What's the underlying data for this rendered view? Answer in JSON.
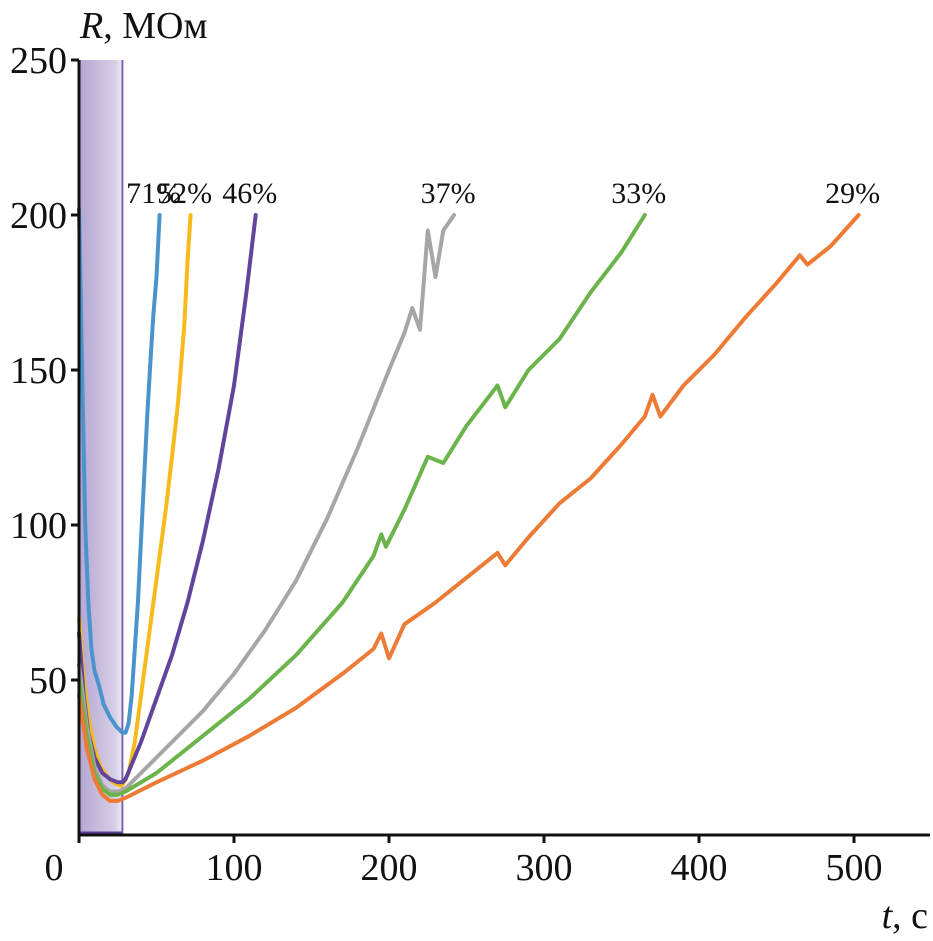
{
  "chart_data": {
    "type": "line",
    "title": "",
    "xlabel": {
      "symbol": "t",
      "unit": ", с"
    },
    "ylabel": {
      "symbol": "R",
      "unit": ", МОм"
    },
    "xlim": [
      0,
      550
    ],
    "ylim": [
      0,
      250
    ],
    "x_ticks": [
      0,
      100,
      200,
      300,
      400,
      500
    ],
    "y_ticks": [
      50,
      100,
      150,
      200,
      250
    ],
    "grid": false,
    "shaded_region": {
      "x_start": 0,
      "x_end": 28,
      "color": "#a796c9"
    },
    "series": [
      {
        "name": "71%",
        "color": "#4a93cc",
        "points": [
          [
            0,
            202
          ],
          [
            2,
            150
          ],
          [
            4,
            100
          ],
          [
            6,
            75
          ],
          [
            8,
            60
          ],
          [
            10,
            53
          ],
          [
            13,
            48
          ],
          [
            16,
            42
          ],
          [
            20,
            38
          ],
          [
            24,
            35
          ],
          [
            28,
            33
          ],
          [
            30,
            33
          ],
          [
            32,
            36
          ],
          [
            34,
            45
          ],
          [
            36,
            60
          ],
          [
            38,
            75
          ],
          [
            40,
            95
          ],
          [
            42,
            115
          ],
          [
            44,
            135
          ],
          [
            46,
            152
          ],
          [
            48,
            168
          ],
          [
            50,
            180
          ],
          [
            52,
            200
          ]
        ]
      },
      {
        "name": "52%",
        "color": "#f6bb1a",
        "points": [
          [
            0,
            70
          ],
          [
            3,
            50
          ],
          [
            6,
            38
          ],
          [
            10,
            28
          ],
          [
            14,
            22
          ],
          [
            18,
            19
          ],
          [
            22,
            17
          ],
          [
            26,
            16
          ],
          [
            28,
            16
          ],
          [
            32,
            20
          ],
          [
            36,
            30
          ],
          [
            40,
            45
          ],
          [
            44,
            60
          ],
          [
            48,
            75
          ],
          [
            52,
            90
          ],
          [
            56,
            105
          ],
          [
            60,
            122
          ],
          [
            64,
            140
          ],
          [
            68,
            165
          ],
          [
            70,
            185
          ],
          [
            72,
            200
          ]
        ]
      },
      {
        "name": "46%",
        "color": "#61449c",
        "points": [
          [
            0,
            65
          ],
          [
            3,
            45
          ],
          [
            6,
            33
          ],
          [
            10,
            25
          ],
          [
            15,
            20
          ],
          [
            20,
            18
          ],
          [
            25,
            17
          ],
          [
            28,
            17
          ],
          [
            30,
            18
          ],
          [
            40,
            30
          ],
          [
            50,
            44
          ],
          [
            60,
            58
          ],
          [
            70,
            75
          ],
          [
            80,
            95
          ],
          [
            90,
            118
          ],
          [
            100,
            145
          ],
          [
            108,
            175
          ],
          [
            114,
            200
          ]
        ]
      },
      {
        "name": "37%",
        "color": "#a6a6a6",
        "points": [
          [
            0,
            55
          ],
          [
            5,
            35
          ],
          [
            10,
            22
          ],
          [
            15,
            16
          ],
          [
            20,
            14
          ],
          [
            25,
            14
          ],
          [
            30,
            15
          ],
          [
            40,
            20
          ],
          [
            60,
            30
          ],
          [
            80,
            40
          ],
          [
            100,
            52
          ],
          [
            120,
            66
          ],
          [
            140,
            82
          ],
          [
            160,
            102
          ],
          [
            180,
            125
          ],
          [
            200,
            150
          ],
          [
            210,
            162
          ],
          [
            215,
            170
          ],
          [
            220,
            163
          ],
          [
            225,
            195
          ],
          [
            230,
            180
          ],
          [
            235,
            195
          ],
          [
            242,
            200
          ]
        ]
      },
      {
        "name": "33%",
        "color": "#6bb34b",
        "points": [
          [
            0,
            50
          ],
          [
            5,
            32
          ],
          [
            10,
            20
          ],
          [
            15,
            15
          ],
          [
            20,
            13
          ],
          [
            25,
            13
          ],
          [
            30,
            14
          ],
          [
            50,
            20
          ],
          [
            80,
            32
          ],
          [
            110,
            44
          ],
          [
            140,
            58
          ],
          [
            170,
            75
          ],
          [
            190,
            90
          ],
          [
            195,
            97
          ],
          [
            198,
            93
          ],
          [
            210,
            105
          ],
          [
            225,
            122
          ],
          [
            235,
            120
          ],
          [
            250,
            132
          ],
          [
            270,
            145
          ],
          [
            275,
            138
          ],
          [
            290,
            150
          ],
          [
            310,
            160
          ],
          [
            330,
            175
          ],
          [
            350,
            188
          ],
          [
            365,
            200
          ]
        ]
      },
      {
        "name": "29%",
        "color": "#ee7b35",
        "points": [
          [
            0,
            45
          ],
          [
            5,
            28
          ],
          [
            10,
            18
          ],
          [
            15,
            13
          ],
          [
            20,
            11
          ],
          [
            25,
            11
          ],
          [
            30,
            12
          ],
          [
            50,
            17
          ],
          [
            80,
            24
          ],
          [
            110,
            32
          ],
          [
            140,
            41
          ],
          [
            170,
            52
          ],
          [
            190,
            60
          ],
          [
            195,
            65
          ],
          [
            200,
            57
          ],
          [
            210,
            68
          ],
          [
            230,
            75
          ],
          [
            250,
            83
          ],
          [
            270,
            91
          ],
          [
            275,
            87
          ],
          [
            290,
            96
          ],
          [
            310,
            107
          ],
          [
            330,
            115
          ],
          [
            350,
            126
          ],
          [
            365,
            135
          ],
          [
            370,
            142
          ],
          [
            375,
            135
          ],
          [
            390,
            145
          ],
          [
            410,
            155
          ],
          [
            430,
            167
          ],
          [
            450,
            178
          ],
          [
            465,
            187
          ],
          [
            470,
            184
          ],
          [
            485,
            190
          ],
          [
            503,
            200
          ]
        ]
      }
    ]
  }
}
